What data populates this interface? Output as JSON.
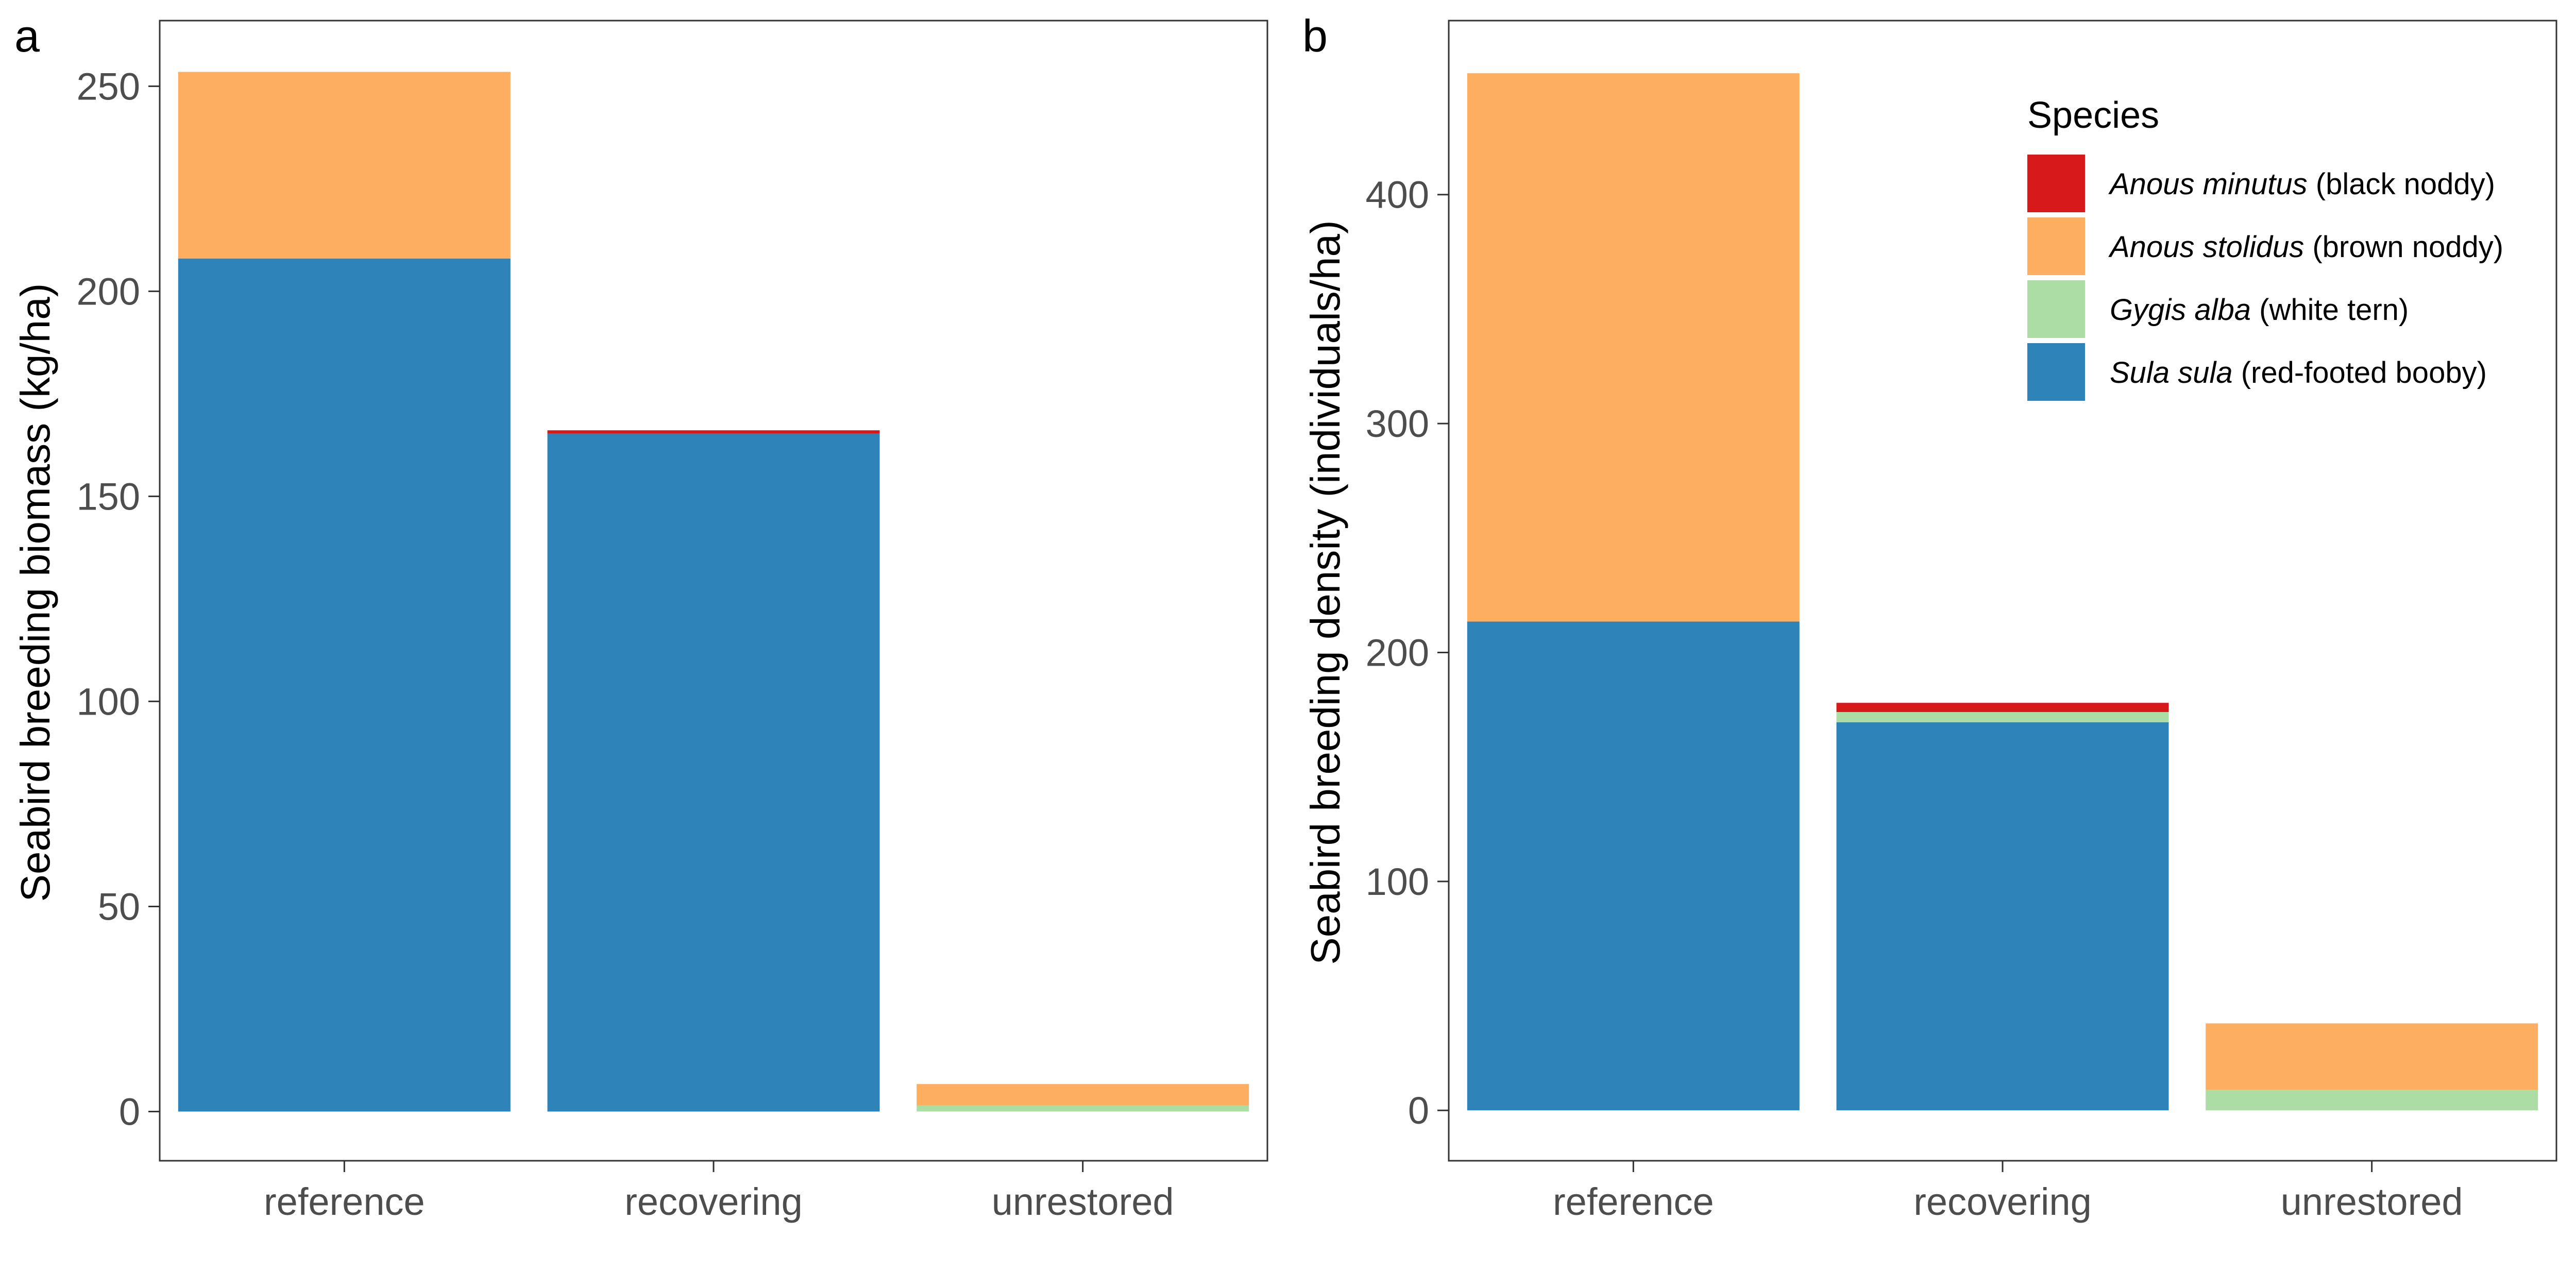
{
  "chart_data": [
    {
      "type": "bar",
      "stacked": true,
      "panel_label": "a",
      "categories": [
        "reference",
        "recovering",
        "unrestored"
      ],
      "series": [
        {
          "name": "Sula sula (red-footed booby)",
          "color": "#2e84b9",
          "values": [
            208,
            165.3,
            0
          ]
        },
        {
          "name": "Gygis alba (white tern)",
          "color": "#abdda4",
          "values": [
            0,
            0,
            1.5
          ]
        },
        {
          "name": "Anous stolidus (brown noddy)",
          "color": "#fdae61",
          "values": [
            45.5,
            0,
            5.2
          ]
        },
        {
          "name": "Anous minutus (black noddy)",
          "color": "#d7191c",
          "values": [
            0,
            0.8,
            0
          ]
        }
      ],
      "ylabel": "Seabird breeding biomass (kg/ha)",
      "xlabel": "",
      "ylim": [
        -12,
        266
      ],
      "yticks": [
        0,
        50,
        100,
        150,
        200,
        250
      ],
      "grid": false
    },
    {
      "type": "bar",
      "stacked": true,
      "panel_label": "b",
      "categories": [
        "reference",
        "recovering",
        "unrestored"
      ],
      "series": [
        {
          "name": "Sula sula (red-footed booby)",
          "color": "#2e84b9",
          "values": [
            213.5,
            169.5,
            0
          ]
        },
        {
          "name": "Gygis alba (white tern)",
          "color": "#abdda4",
          "values": [
            0,
            4.5,
            9
          ]
        },
        {
          "name": "Anous stolidus (brown noddy)",
          "color": "#fdae61",
          "values": [
            239.5,
            0,
            29
          ]
        },
        {
          "name": "Anous minutus (black noddy)",
          "color": "#d7191c",
          "values": [
            0,
            4,
            0
          ]
        }
      ],
      "ylabel": "Seabird breeding density (individuals/ha)",
      "xlabel": "",
      "ylim": [
        -22,
        476
      ],
      "yticks": [
        0,
        100,
        200,
        300,
        400
      ],
      "grid": false
    }
  ],
  "legend": {
    "title": "Species",
    "placement": "top-right of panel b",
    "items": [
      {
        "species": "Anous minutus",
        "common": "(black noddy)",
        "color": "#d7191c"
      },
      {
        "species": "Anous stolidus",
        "common": "(brown noddy)",
        "color": "#fdae61"
      },
      {
        "species": "Gygis alba",
        "common": "(white tern)",
        "color": "#abdda4"
      },
      {
        "species": "Sula sula",
        "common": "(red-footed booby)",
        "color": "#2e84b9"
      }
    ]
  }
}
